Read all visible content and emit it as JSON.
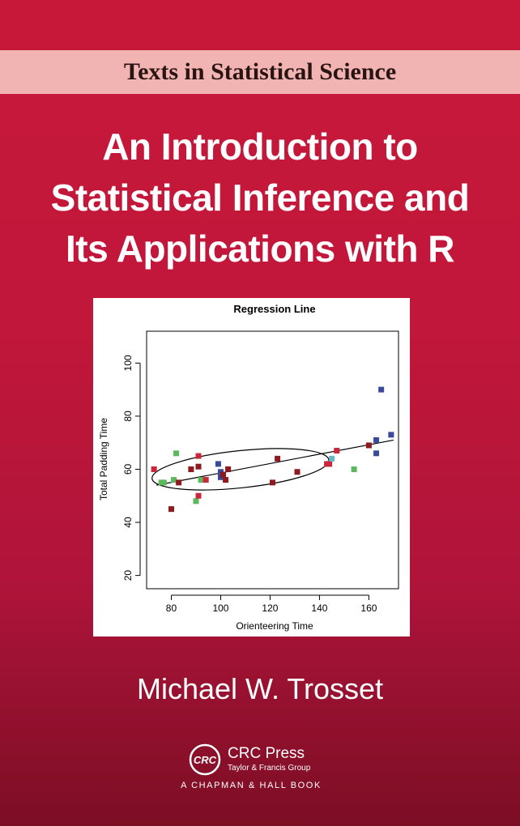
{
  "series": {
    "name": "Texts in Statistical Science"
  },
  "book": {
    "title_lines": [
      "An Introduction to",
      "Statistical Inference and",
      "Its Applications with R"
    ],
    "author": "Michael W. Trosset"
  },
  "publisher": {
    "logo_text": "CRC",
    "name": "CRC Press",
    "group": "Taylor & Francis Group",
    "imprint": "A CHAPMAN & HALL BOOK"
  },
  "chart_data": {
    "type": "scatter",
    "title": "Regression Line",
    "xlabel": "Orienteering Time",
    "ylabel": "Total Padding Time",
    "xlim": [
      70,
      172
    ],
    "ylim": [
      15,
      112
    ],
    "xticks": [
      80,
      100,
      120,
      140,
      160
    ],
    "yticks": [
      20,
      40,
      60,
      80,
      100
    ],
    "grid": false,
    "colors": {
      "red": "#c8283a",
      "darkred": "#8c1a1f",
      "blue": "#3a4a9a",
      "green": "#5cb85c",
      "cyan": "#66b8c8"
    },
    "points": [
      {
        "x": 73,
        "y": 60,
        "color": "red"
      },
      {
        "x": 76,
        "y": 55,
        "color": "green"
      },
      {
        "x": 77,
        "y": 55,
        "color": "green"
      },
      {
        "x": 80,
        "y": 45,
        "color": "darkred"
      },
      {
        "x": 81,
        "y": 56,
        "color": "green"
      },
      {
        "x": 82,
        "y": 66,
        "color": "green"
      },
      {
        "x": 83,
        "y": 55,
        "color": "darkred"
      },
      {
        "x": 88,
        "y": 60,
        "color": "darkred"
      },
      {
        "x": 90,
        "y": 48,
        "color": "green"
      },
      {
        "x": 91,
        "y": 50,
        "color": "red"
      },
      {
        "x": 91,
        "y": 65,
        "color": "red"
      },
      {
        "x": 91,
        "y": 61,
        "color": "darkred"
      },
      {
        "x": 92,
        "y": 56,
        "color": "green"
      },
      {
        "x": 94,
        "y": 56,
        "color": "red"
      },
      {
        "x": 99,
        "y": 62,
        "color": "blue"
      },
      {
        "x": 100,
        "y": 59,
        "color": "blue"
      },
      {
        "x": 100,
        "y": 57,
        "color": "blue"
      },
      {
        "x": 101,
        "y": 58,
        "color": "darkred"
      },
      {
        "x": 102,
        "y": 56,
        "color": "darkred"
      },
      {
        "x": 103,
        "y": 60,
        "color": "darkred"
      },
      {
        "x": 121,
        "y": 55,
        "color": "darkred"
      },
      {
        "x": 123,
        "y": 64,
        "color": "darkred"
      },
      {
        "x": 131,
        "y": 59,
        "color": "darkred"
      },
      {
        "x": 143,
        "y": 62,
        "color": "red"
      },
      {
        "x": 144,
        "y": 62,
        "color": "red"
      },
      {
        "x": 145,
        "y": 64,
        "color": "cyan"
      },
      {
        "x": 147,
        "y": 67,
        "color": "red"
      },
      {
        "x": 154,
        "y": 60,
        "color": "green"
      },
      {
        "x": 160,
        "y": 69,
        "color": "darkred"
      },
      {
        "x": 163,
        "y": 66,
        "color": "blue"
      },
      {
        "x": 163,
        "y": 71,
        "color": "blue"
      },
      {
        "x": 165,
        "y": 90,
        "color": "blue"
      },
      {
        "x": 169,
        "y": 73,
        "color": "blue"
      }
    ],
    "regression_line": {
      "x": [
        74,
        170
      ],
      "y": [
        54,
        71
      ]
    },
    "ellipse": {
      "center": [
        108,
        60
      ],
      "semi_axis_x": 36,
      "semi_axis_y": 7,
      "tilt_deg": -6
    }
  }
}
